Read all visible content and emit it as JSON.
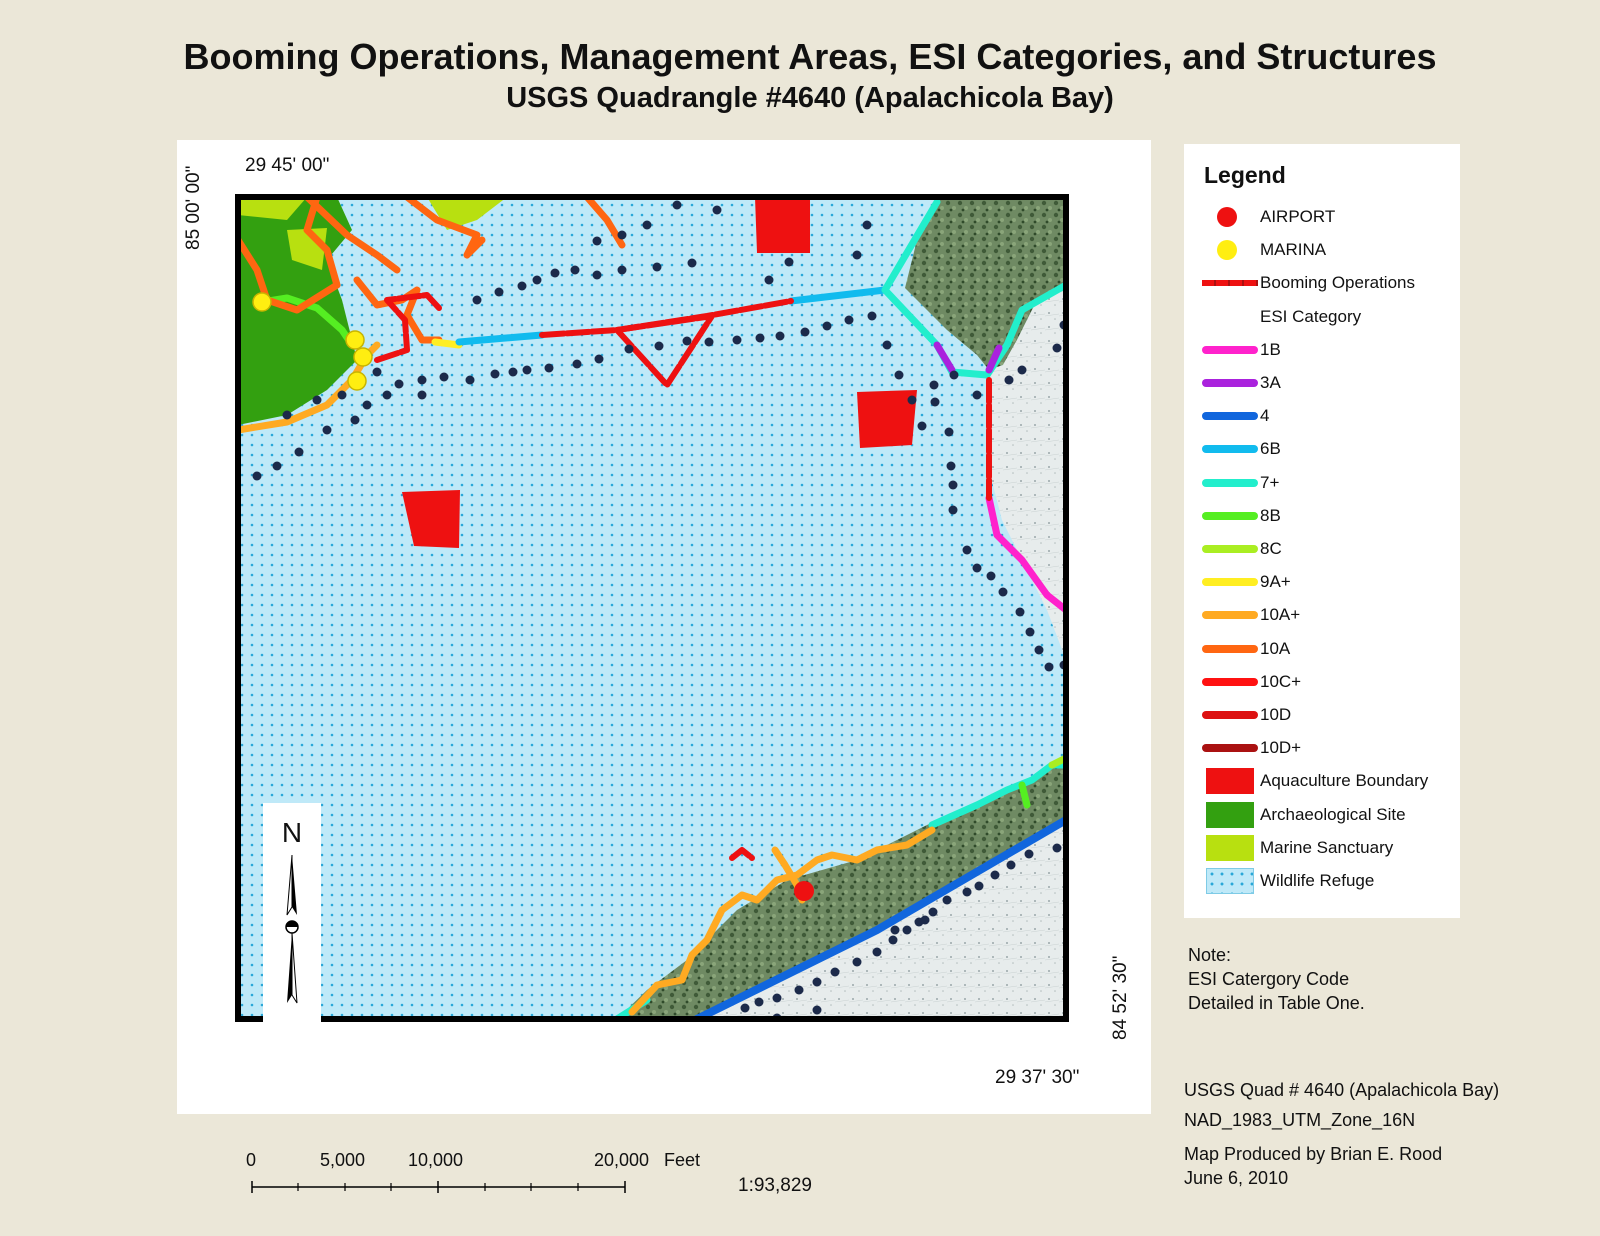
{
  "title": "Booming Operations, Management Areas, ESI Categories, and Structures",
  "subtitle": "USGS Quadrangle #4640 (Apalachicola Bay)",
  "coords": {
    "top_left": "29 45' 00\"",
    "left_vertical": "85 00' 00\"",
    "bottom_right": "29 37' 30\"",
    "right_vertical": "84 52' 30\""
  },
  "north_arrow": {
    "letter": "N"
  },
  "legend": {
    "title": "Legend",
    "items": [
      {
        "label": "AIRPORT",
        "type": "circle",
        "color": "#ee1111"
      },
      {
        "label": "MARINA",
        "type": "circle",
        "color": "#ffee11"
      },
      {
        "label": "Booming Operations",
        "type": "dashed-line",
        "color": "#ee1111"
      },
      {
        "label": "ESI Category",
        "type": "none",
        "color": ""
      },
      {
        "label": "1B",
        "type": "line",
        "color": "#ff22cc"
      },
      {
        "label": "3A",
        "type": "line",
        "color": "#aa22dd"
      },
      {
        "label": "4",
        "type": "line",
        "color": "#1166dd"
      },
      {
        "label": "6B",
        "type": "line",
        "color": "#11bbee"
      },
      {
        "label": "7+",
        "type": "line",
        "color": "#22eecc"
      },
      {
        "label": "8B",
        "type": "line",
        "color": "#55ee22"
      },
      {
        "label": "8C",
        "type": "line",
        "color": "#aaee22"
      },
      {
        "label": "9A+",
        "type": "line",
        "color": "#ffee22"
      },
      {
        "label": "10A+",
        "type": "line",
        "color": "#ffaa22"
      },
      {
        "label": "10A",
        "type": "line",
        "color": "#ff6611"
      },
      {
        "label": "10C+",
        "type": "line",
        "color": "#ff1111"
      },
      {
        "label": "10D",
        "type": "line",
        "color": "#dd1111"
      },
      {
        "label": "10D+",
        "type": "line",
        "color": "#aa1111"
      },
      {
        "label": "Aquaculture Boundary",
        "type": "fill",
        "color": "#ee1111"
      },
      {
        "label": "Archaeological Site",
        "type": "fill",
        "color": "#33a010"
      },
      {
        "label": "Marine Sanctuary",
        "type": "fill",
        "color": "#b8e010"
      },
      {
        "label": "Wildlife Refuge",
        "type": "dotfill",
        "color": "#bfe9f8"
      }
    ]
  },
  "note": {
    "line1": "Note:",
    "line2": "ESI Catergory Code",
    "line3": "Detailed in Table One."
  },
  "info": {
    "line1": "USGS Quad # 4640 (Apalachicola Bay)",
    "line2": "NAD_1983_UTM_Zone_16N",
    "line3": "Map Produced by Brian E. Rood",
    "line4": "June 6, 2010"
  },
  "scale": {
    "labels": [
      "0",
      "5,000",
      "10,000",
      "20,000"
    ],
    "unit": "Feet",
    "ratio": "1:93,829"
  }
}
